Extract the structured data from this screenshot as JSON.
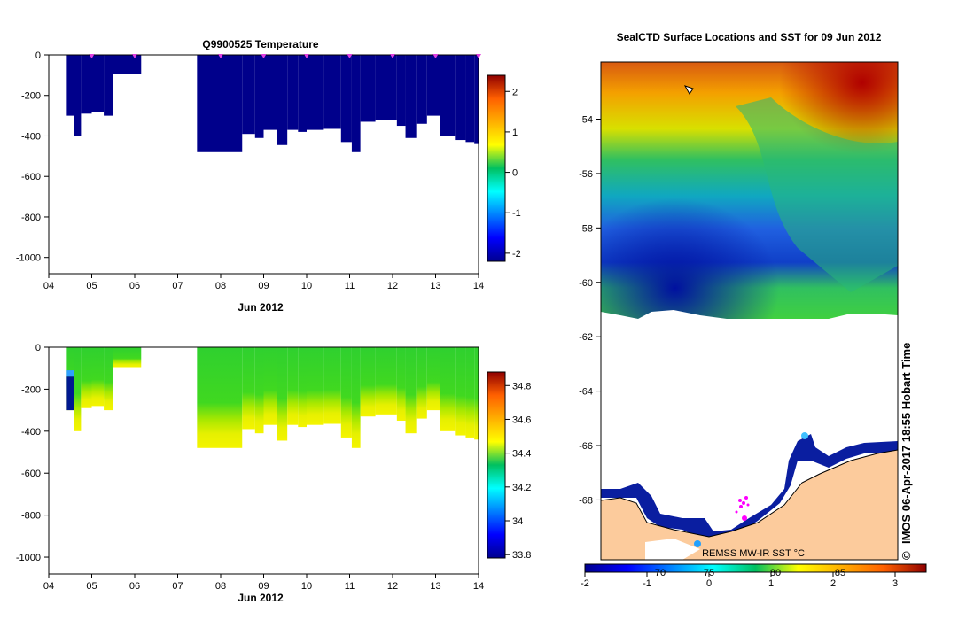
{
  "chart_data": [
    {
      "type": "heatmap",
      "title": "Q9900525  Temperature",
      "xlabel": "Jun 2012",
      "ylabel": "",
      "xticks": [
        "04",
        "05",
        "06",
        "07",
        "08",
        "09",
        "10",
        "11",
        "12",
        "13",
        "14"
      ],
      "x_range_days": [
        4,
        14
      ],
      "yticks": [
        "0",
        "-200",
        "-400",
        "-600",
        "-800",
        "-1000"
      ],
      "y_range": [
        -1080,
        0
      ],
      "colorbar_ticks": [
        "2",
        "1",
        "0",
        "-1",
        "-2"
      ],
      "colorbar_range": [
        -2.2,
        2.4
      ],
      "profile_markers_days": [
        5.0,
        6.0,
        8.0,
        9.0,
        10.0,
        11.0,
        12.0,
        13.0,
        14.0
      ],
      "profile_depths": [
        {
          "x0": 4.42,
          "x1": 4.58,
          "depth": 300,
          "value": -2.0
        },
        {
          "x0": 4.58,
          "x1": 4.75,
          "depth": 400,
          "value": -2.0
        },
        {
          "x0": 4.75,
          "x1": 5.0,
          "depth": 290,
          "value": -2.0
        },
        {
          "x0": 5.0,
          "x1": 5.28,
          "depth": 280,
          "value": -2.0
        },
        {
          "x0": 5.28,
          "x1": 5.5,
          "depth": 300,
          "value": -2.0
        },
        {
          "x0": 5.5,
          "x1": 6.15,
          "depth": 95,
          "value": -2.0
        },
        {
          "x0": 7.45,
          "x1": 8.5,
          "depth": 480,
          "value": -2.0
        },
        {
          "x0": 8.5,
          "x1": 8.8,
          "depth": 390,
          "value": -2.0
        },
        {
          "x0": 8.8,
          "x1": 9.0,
          "depth": 410,
          "value": -2.0
        },
        {
          "x0": 9.0,
          "x1": 9.3,
          "depth": 370,
          "value": -2.0
        },
        {
          "x0": 9.3,
          "x1": 9.55,
          "depth": 445,
          "value": -2.0
        },
        {
          "x0": 9.55,
          "x1": 9.8,
          "depth": 370,
          "value": -2.0
        },
        {
          "x0": 9.8,
          "x1": 10.0,
          "depth": 380,
          "value": -2.0
        },
        {
          "x0": 10.0,
          "x1": 10.4,
          "depth": 370,
          "value": -2.0
        },
        {
          "x0": 10.4,
          "x1": 10.8,
          "depth": 365,
          "value": -2.0
        },
        {
          "x0": 10.8,
          "x1": 11.05,
          "depth": 430,
          "value": -2.0
        },
        {
          "x0": 11.05,
          "x1": 11.25,
          "depth": 480,
          "value": -2.0
        },
        {
          "x0": 11.25,
          "x1": 11.6,
          "depth": 330,
          "value": -2.0
        },
        {
          "x0": 11.6,
          "x1": 12.1,
          "depth": 320,
          "value": -2.0
        },
        {
          "x0": 12.1,
          "x1": 12.3,
          "depth": 350,
          "value": -2.0
        },
        {
          "x0": 12.3,
          "x1": 12.55,
          "depth": 410,
          "value": -2.0
        },
        {
          "x0": 12.55,
          "x1": 12.8,
          "depth": 340,
          "value": -2.0
        },
        {
          "x0": 12.8,
          "x1": 13.1,
          "depth": 300,
          "value": -2.0
        },
        {
          "x0": 13.1,
          "x1": 13.45,
          "depth": 400,
          "value": -2.0
        },
        {
          "x0": 13.45,
          "x1": 13.7,
          "depth": 420,
          "value": -2.0
        },
        {
          "x0": 13.7,
          "x1": 13.9,
          "depth": 430,
          "value": -2.0
        },
        {
          "x0": 13.9,
          "x1": 14.1,
          "depth": 440,
          "value": -2.0
        }
      ]
    },
    {
      "type": "heatmap",
      "title": "",
      "xlabel": "Jun 2012",
      "ylabel": "",
      "xticks": [
        "04",
        "05",
        "06",
        "07",
        "08",
        "09",
        "10",
        "11",
        "12",
        "13",
        "14"
      ],
      "x_range_days": [
        4,
        14
      ],
      "yticks": [
        "0",
        "-200",
        "-400",
        "-600",
        "-800",
        "-1000"
      ],
      "y_range": [
        -1080,
        0
      ],
      "colorbar_ticks": [
        "34.8",
        "34.6",
        "34.4",
        "34.2",
        "34",
        "33.8"
      ],
      "colorbar_range": [
        33.78,
        34.88
      ],
      "profile_depths": [
        {
          "x0": 4.42,
          "x1": 4.58,
          "depth": 300
        },
        {
          "x0": 4.58,
          "x1": 4.75,
          "depth": 400
        },
        {
          "x0": 4.75,
          "x1": 5.0,
          "depth": 290
        },
        {
          "x0": 5.0,
          "x1": 5.28,
          "depth": 280
        },
        {
          "x0": 5.28,
          "x1": 5.5,
          "depth": 300
        },
        {
          "x0": 5.5,
          "x1": 6.15,
          "depth": 95
        },
        {
          "x0": 7.45,
          "x1": 8.5,
          "depth": 480
        },
        {
          "x0": 8.5,
          "x1": 8.8,
          "depth": 390
        },
        {
          "x0": 8.8,
          "x1": 9.0,
          "depth": 410
        },
        {
          "x0": 9.0,
          "x1": 9.3,
          "depth": 370
        },
        {
          "x0": 9.3,
          "x1": 9.55,
          "depth": 445
        },
        {
          "x0": 9.55,
          "x1": 9.8,
          "depth": 370
        },
        {
          "x0": 9.8,
          "x1": 10.0,
          "depth": 380
        },
        {
          "x0": 10.0,
          "x1": 10.4,
          "depth": 370
        },
        {
          "x0": 10.4,
          "x1": 10.8,
          "depth": 365
        },
        {
          "x0": 10.8,
          "x1": 11.05,
          "depth": 430
        },
        {
          "x0": 11.05,
          "x1": 11.25,
          "depth": 480
        },
        {
          "x0": 11.25,
          "x1": 11.6,
          "depth": 330
        },
        {
          "x0": 11.6,
          "x1": 12.1,
          "depth": 320
        },
        {
          "x0": 12.1,
          "x1": 12.3,
          "depth": 350
        },
        {
          "x0": 12.3,
          "x1": 12.55,
          "depth": 410
        },
        {
          "x0": 12.55,
          "x1": 12.8,
          "depth": 340
        },
        {
          "x0": 12.8,
          "x1": 13.1,
          "depth": 300
        },
        {
          "x0": 13.1,
          "x1": 13.45,
          "depth": 400
        },
        {
          "x0": 13.45,
          "x1": 13.7,
          "depth": 420
        },
        {
          "x0": 13.7,
          "x1": 13.9,
          "depth": 430
        },
        {
          "x0": 13.9,
          "x1": 14.1,
          "depth": 440
        }
      ]
    },
    {
      "type": "heatmap",
      "title": "SealCTD Surface Locations and SST for 09 Jun 2012",
      "yticks": [
        "-54",
        "-56",
        "-58",
        "-60",
        "-62",
        "-64",
        "-66",
        "-68"
      ],
      "lat_range": [
        -70.2,
        -51.9
      ],
      "colorbar_ticks": [
        "-2",
        "-1",
        "0",
        "1",
        "2",
        "3"
      ],
      "colorbar_range": [
        -2,
        3.5
      ],
      "lon_labels": [
        "70",
        "75",
        "80",
        "85"
      ],
      "credit": "IMOS 06-Apr-2017 18:55 Hobart Time",
      "credit_symbol": "©",
      "legend_note": "REMSS MW-IR SST °C",
      "colors": {
        "ice_edge": "#ffffff",
        "land": "#fccb9c",
        "seal_track": "#ff00ff"
      }
    }
  ]
}
